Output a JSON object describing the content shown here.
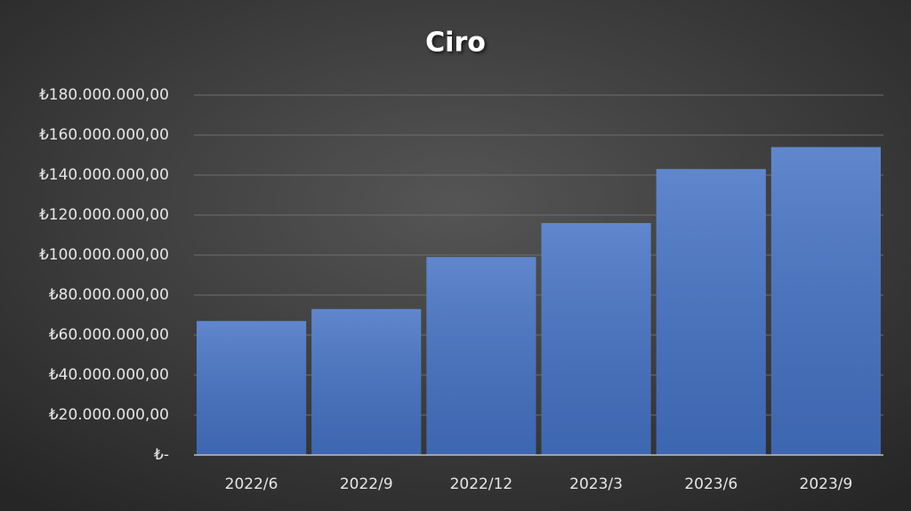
{
  "chart_data": {
    "type": "bar",
    "title": "Ciro",
    "categories": [
      "2022/6",
      "2022/9",
      "2022/12",
      "2023/3",
      "2023/6",
      "2023/9"
    ],
    "values": [
      67000000,
      73000000,
      99000000,
      116000000,
      143000000,
      154000000
    ],
    "color": "#4472c4",
    "ylim": [
      0,
      180000000
    ],
    "yticks": [
      {
        "value": 0,
        "label": "₺-"
      },
      {
        "value": 20000000,
        "label": "₺20.000.000,00"
      },
      {
        "value": 40000000,
        "label": "₺40.000.000,00"
      },
      {
        "value": 60000000,
        "label": "₺60.000.000,00"
      },
      {
        "value": 80000000,
        "label": "₺80.000.000,00"
      },
      {
        "value": 100000000,
        "label": "₺100.000.000,00"
      },
      {
        "value": 120000000,
        "label": "₺120.000.000,00"
      },
      {
        "value": 140000000,
        "label": "₺140.000.000,00"
      },
      {
        "value": 160000000,
        "label": "₺160.000.000,00"
      },
      {
        "value": 180000000,
        "label": "₺180.000.000,00"
      }
    ],
    "grid": true
  }
}
